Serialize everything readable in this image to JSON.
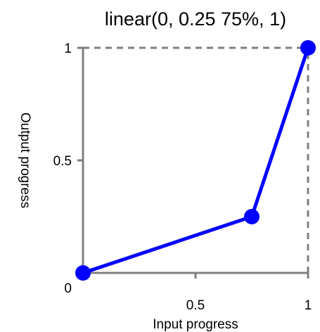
{
  "chart_data": {
    "type": "line",
    "title": "linear(0, 0.25 75%, 1)",
    "xlabel": "Input progress",
    "ylabel": "Output progress",
    "xlim": [
      0,
      1
    ],
    "ylim": [
      0,
      1
    ],
    "x_ticks": [
      {
        "value": 0.5,
        "label": "0.5"
      },
      {
        "value": 1,
        "label": "1"
      }
    ],
    "y_ticks": [
      {
        "value": 0,
        "label": "0"
      },
      {
        "value": 0.5,
        "label": "0.5"
      },
      {
        "value": 1,
        "label": "1"
      }
    ],
    "series": [
      {
        "points": [
          {
            "x": 0,
            "y": 0
          },
          {
            "x": 0.75,
            "y": 0.25
          },
          {
            "x": 1,
            "y": 1
          }
        ],
        "color": "#0000ff",
        "markers": true
      }
    ],
    "reference_lines": [
      {
        "from": {
          "x": 0,
          "y": 1
        },
        "to": {
          "x": 1,
          "y": 1
        },
        "style": "dashed",
        "color": "#7f7f7f"
      },
      {
        "from": {
          "x": 1,
          "y": 0
        },
        "to": {
          "x": 1,
          "y": 1
        },
        "style": "dashed",
        "color": "#7f7f7f"
      }
    ],
    "axis_color": "#7f7f7f",
    "grid": false,
    "legend": "none"
  }
}
